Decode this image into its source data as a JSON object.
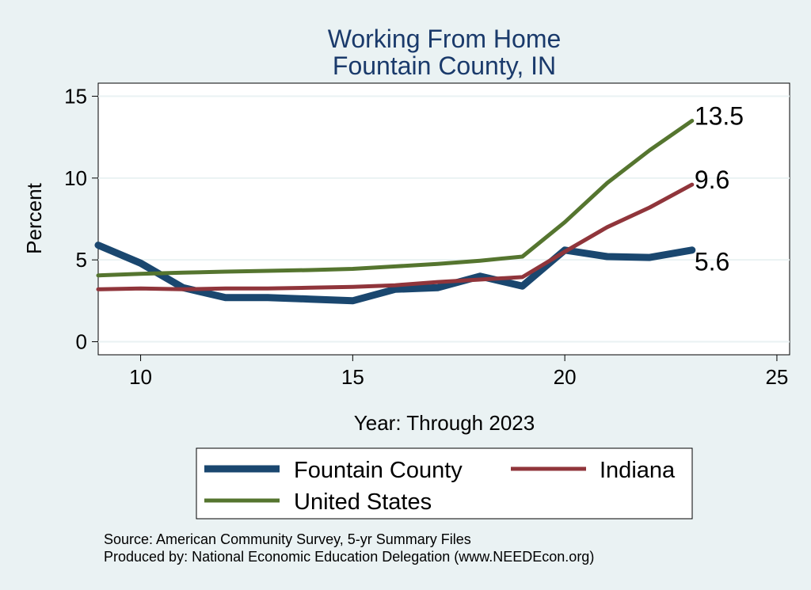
{
  "chart_data": {
    "type": "line",
    "title": [
      "Working From Home",
      "Fountain County, IN"
    ],
    "xlabel": "Year: Through 2023",
    "ylabel": "Percent",
    "xlim": [
      9,
      25.3
    ],
    "ylim": [
      -0.8,
      15.8
    ],
    "xticks": [
      10,
      15,
      20,
      25
    ],
    "yticks": [
      0,
      5,
      10,
      15
    ],
    "grid": true,
    "legend_position": "bottom",
    "series": [
      {
        "name": "Fountain County",
        "color": "#1a476f",
        "width": 9,
        "x": [
          9,
          10,
          11,
          12,
          13,
          14,
          15,
          16,
          17,
          18,
          19,
          20,
          21,
          22,
          23
        ],
        "y": [
          5.9,
          4.8,
          3.3,
          2.7,
          2.7,
          2.6,
          2.5,
          3.2,
          3.3,
          4.0,
          3.4,
          5.6,
          5.2,
          5.15,
          5.6
        ]
      },
      {
        "name": "Indiana",
        "color": "#90353b",
        "width": 5,
        "x": [
          9,
          10,
          11,
          12,
          13,
          14,
          15,
          16,
          17,
          18,
          19,
          20,
          21,
          22,
          23
        ],
        "y": [
          3.2,
          3.25,
          3.2,
          3.25,
          3.25,
          3.3,
          3.35,
          3.45,
          3.65,
          3.8,
          3.95,
          5.5,
          7.0,
          8.2,
          9.6
        ]
      },
      {
        "name": "United States",
        "color": "#55752f",
        "width": 5,
        "x": [
          9,
          10,
          11,
          12,
          13,
          14,
          15,
          16,
          17,
          18,
          19,
          20,
          21,
          22,
          23
        ],
        "y": [
          4.05,
          4.15,
          4.22,
          4.28,
          4.33,
          4.38,
          4.45,
          4.6,
          4.75,
          4.95,
          5.2,
          7.3,
          9.7,
          11.7,
          13.5
        ]
      }
    ],
    "end_labels": [
      {
        "series": "United States",
        "text": "13.5",
        "y": 13.5
      },
      {
        "series": "Indiana",
        "text": "9.6",
        "y": 9.6
      },
      {
        "series": "Fountain County",
        "text": "5.6",
        "y": 4.6
      }
    ]
  },
  "legend": {
    "items": [
      "Fountain County",
      "Indiana",
      "United States"
    ]
  },
  "notes": {
    "source": "Source: American Community Survey, 5-yr Summary Files",
    "produced": "Produced by: National Economic Education Delegation (www.NEEDEcon.org)"
  }
}
